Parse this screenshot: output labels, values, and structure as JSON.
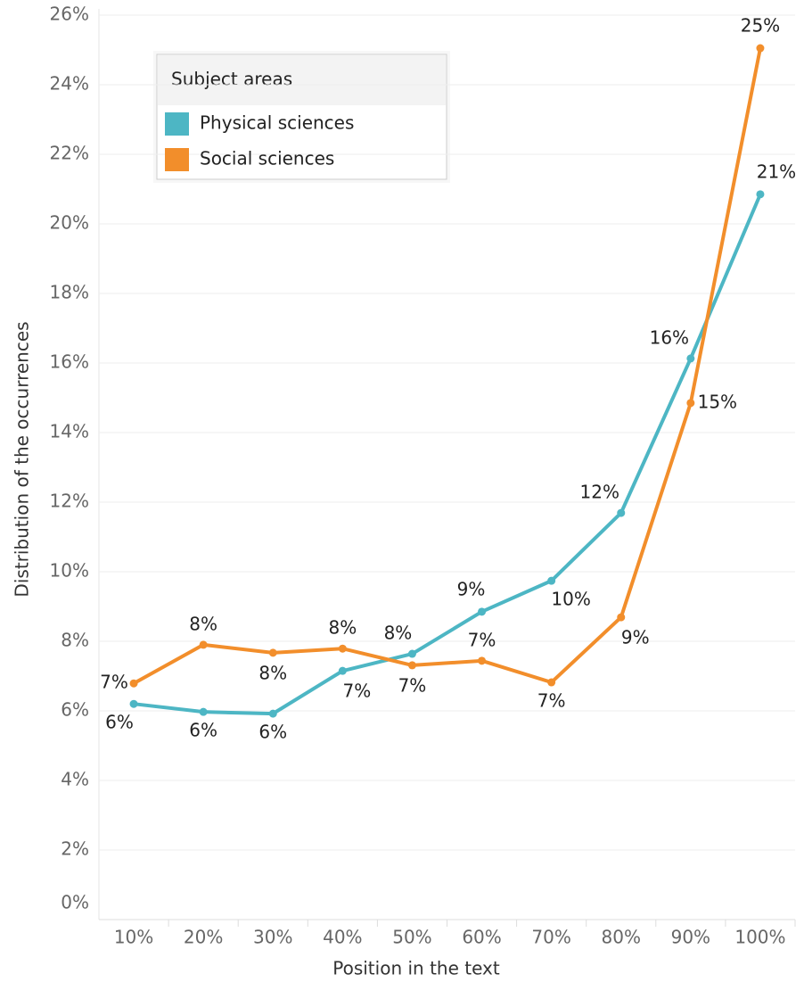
{
  "chart_data": {
    "type": "line",
    "x_label": "Position in the text",
    "y_label": "Distribution of the occurrences",
    "legend_title": "Subject areas",
    "legend": "top-left",
    "grid": true,
    "categories": [
      "10%",
      "20%",
      "30%",
      "40%",
      "50%",
      "60%",
      "70%",
      "80%",
      "90%",
      "100%"
    ],
    "ylim": [
      0,
      26.4
    ],
    "yticks": [
      {
        "value": 0,
        "label": "0%"
      },
      {
        "value": 2,
        "label": "2%"
      },
      {
        "value": 4,
        "label": "4%"
      },
      {
        "value": 6,
        "label": "6%"
      },
      {
        "value": 8,
        "label": "8%"
      },
      {
        "value": 10,
        "label": "10%"
      },
      {
        "value": 12,
        "label": "12%"
      },
      {
        "value": 14,
        "label": "14%"
      },
      {
        "value": 16,
        "label": "16%"
      },
      {
        "value": 18,
        "label": "18%"
      },
      {
        "value": 20,
        "label": "20%"
      },
      {
        "value": 22,
        "label": "22%"
      },
      {
        "value": 24,
        "label": "24%"
      },
      {
        "value": 26,
        "label": "26%"
      }
    ],
    "series": [
      {
        "name": "Physical sciences",
        "color": "#4db6c4",
        "values": [
          6.2,
          5.97,
          5.92,
          7.15,
          7.64,
          8.85,
          9.74,
          11.69,
          16.13,
          20.85
        ],
        "value_labels": [
          "6%",
          "6%",
          "6%",
          "7%",
          "8%",
          "9%",
          "10%",
          "12%",
          "16%",
          "21%"
        ]
      },
      {
        "name": "Social sciences",
        "color": "#f28e2b",
        "values": [
          6.79,
          7.9,
          7.67,
          7.79,
          7.31,
          7.44,
          6.82,
          8.69,
          14.85,
          25.05
        ],
        "value_labels": [
          "7%",
          "8%",
          "8%",
          "8%",
          "7%",
          "7%",
          "7%",
          "9%",
          "15%",
          "25%"
        ]
      }
    ]
  }
}
